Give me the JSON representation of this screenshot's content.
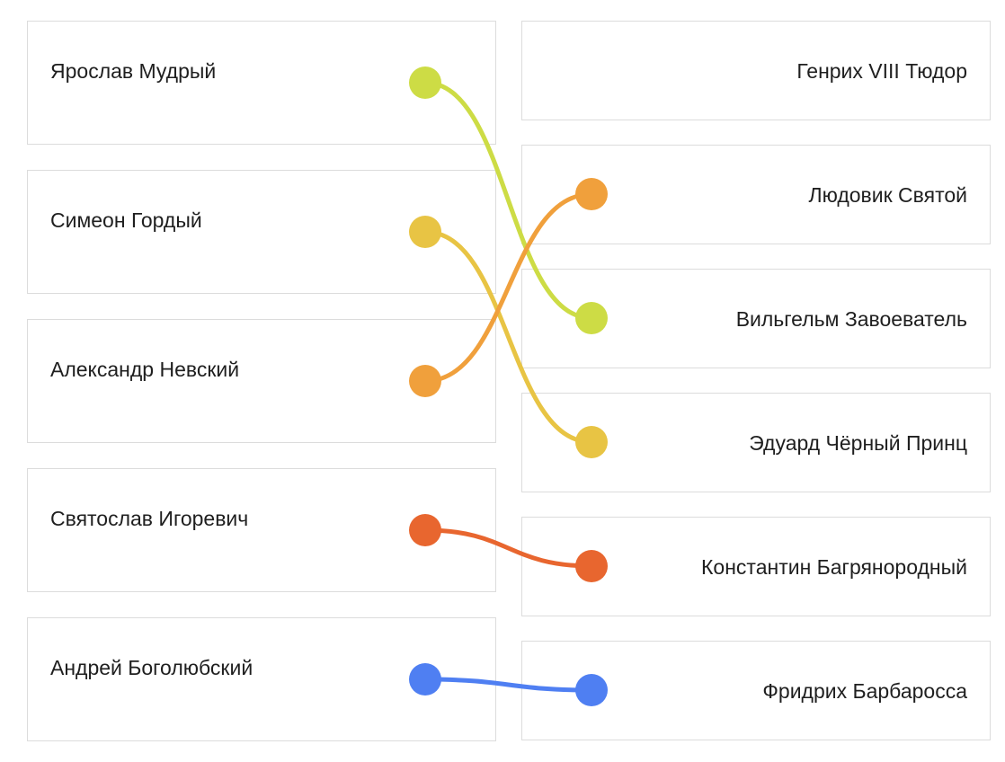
{
  "left_items": [
    {
      "id": "L1",
      "label": "Ярослав Мудрый"
    },
    {
      "id": "L2",
      "label": "Симеон Гордый"
    },
    {
      "id": "L3",
      "label": "Александр Невский"
    },
    {
      "id": "L4",
      "label": "Святослав Игоревич"
    },
    {
      "id": "L5",
      "label": "Андрей Боголюбский"
    }
  ],
  "right_items": [
    {
      "id": "R1",
      "label": "Генрих VIII Тюдор"
    },
    {
      "id": "R2",
      "label": "Людовик Святой"
    },
    {
      "id": "R3",
      "label": "Вильгельм Завоеватель"
    },
    {
      "id": "R4",
      "label": "Эдуард Чёрный Принц"
    },
    {
      "id": "R5",
      "label": "Константин Багрянородный"
    },
    {
      "id": "R6",
      "label": "Фридрих Барбаросса"
    }
  ],
  "connections": [
    {
      "left": "L1",
      "right": "R3",
      "color": "#cddc45"
    },
    {
      "left": "L2",
      "right": "R4",
      "color": "#e8c444"
    },
    {
      "left": "L3",
      "right": "R2",
      "color": "#f0a03c"
    },
    {
      "left": "L4",
      "right": "R5",
      "color": "#e8662f"
    },
    {
      "left": "L5",
      "right": "R6",
      "color": "#4f7ff2"
    }
  ]
}
